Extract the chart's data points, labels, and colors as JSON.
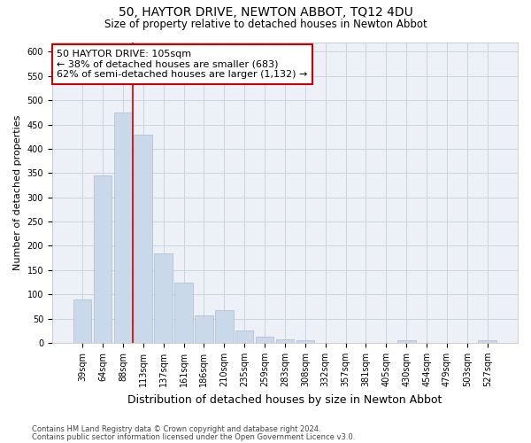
{
  "title": "50, HAYTOR DRIVE, NEWTON ABBOT, TQ12 4DU",
  "subtitle": "Size of property relative to detached houses in Newton Abbot",
  "xlabel": "Distribution of detached houses by size in Newton Abbot",
  "ylabel": "Number of detached properties",
  "categories": [
    "39sqm",
    "64sqm",
    "88sqm",
    "113sqm",
    "137sqm",
    "161sqm",
    "186sqm",
    "210sqm",
    "235sqm",
    "259sqm",
    "283sqm",
    "308sqm",
    "332sqm",
    "357sqm",
    "381sqm",
    "405sqm",
    "430sqm",
    "454sqm",
    "479sqm",
    "503sqm",
    "527sqm"
  ],
  "values": [
    90,
    345,
    475,
    430,
    185,
    125,
    57,
    68,
    25,
    13,
    8,
    5,
    0,
    0,
    0,
    0,
    5,
    0,
    0,
    0,
    5
  ],
  "bar_color": "#c9d9e9",
  "bar_edge_color": "#aabccc",
  "grid_color": "#c8d4e0",
  "bg_color": "#edf1f7",
  "annotation_box_text": "50 HAYTOR DRIVE: 105sqm\n← 38% of detached houses are smaller (683)\n62% of semi-detached houses are larger (1,132) →",
  "annotation_box_color": "#cc0000",
  "vline_color": "#cc0000",
  "vline_x": 2.5,
  "ylim": [
    0,
    620
  ],
  "yticks": [
    0,
    50,
    100,
    150,
    200,
    250,
    300,
    350,
    400,
    450,
    500,
    550,
    600
  ],
  "footnote1": "Contains HM Land Registry data © Crown copyright and database right 2024.",
  "footnote2": "Contains public sector information licensed under the Open Government Licence v3.0.",
  "title_fontsize": 10,
  "subtitle_fontsize": 8.5,
  "xlabel_fontsize": 9,
  "ylabel_fontsize": 8,
  "tick_fontsize": 7,
  "annot_fontsize": 8,
  "footnote_fontsize": 6
}
